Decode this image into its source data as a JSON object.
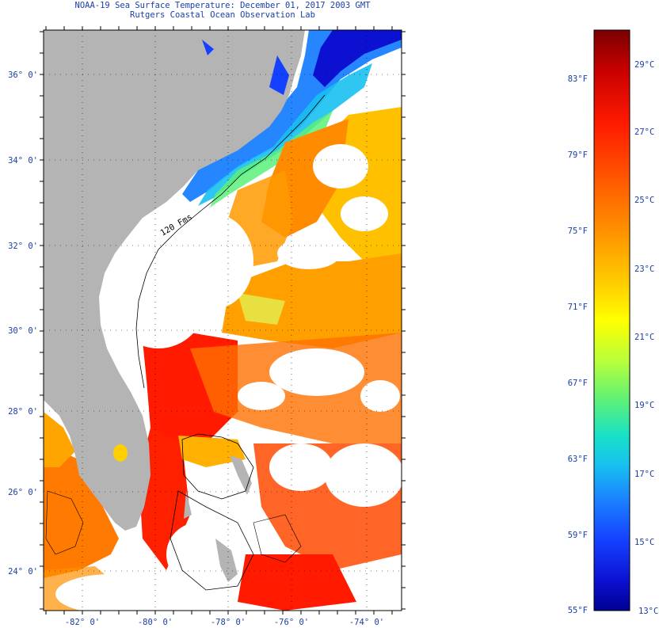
{
  "header": {
    "title": "NOAA-19 Sea Surface Temperature:  December 01, 2017 2003 GMT",
    "subtitle": "Rutgers Coastal Ocean Observation Lab"
  },
  "map": {
    "lat_labels": [
      "36° 0'",
      "34° 0'",
      "32° 0'",
      "30° 0'",
      "28° 0'",
      "26° 0'",
      "24° 0'"
    ],
    "lon_labels": [
      "-82° 0'",
      "-80° 0'",
      "-78° 0'",
      "-76° 0'",
      "-74° 0'"
    ],
    "contour_label": "120 Fms",
    "land_color": "#b4b4b4",
    "ocean_nodata_color": "#ffffff"
  },
  "colorbar": {
    "fahrenheit_labels": [
      "83°F",
      "79°F",
      "75°F",
      "71°F",
      "67°F",
      "63°F",
      "59°F",
      "55°F"
    ],
    "celsius_labels": [
      "29°C",
      "27°C",
      "25°C",
      "23°C",
      "21°C",
      "19°C",
      "17°C",
      "15°C",
      "13°C"
    ],
    "colors": [
      "#7a0000",
      "#c80000",
      "#ff1a00",
      "#ff5a00",
      "#ff9a00",
      "#ffd000",
      "#ffff00",
      "#b8ff3a",
      "#5af07a",
      "#18e0c8",
      "#18c0f0",
      "#1a80ff",
      "#1440ff",
      "#0c10d0",
      "#000090"
    ]
  }
}
